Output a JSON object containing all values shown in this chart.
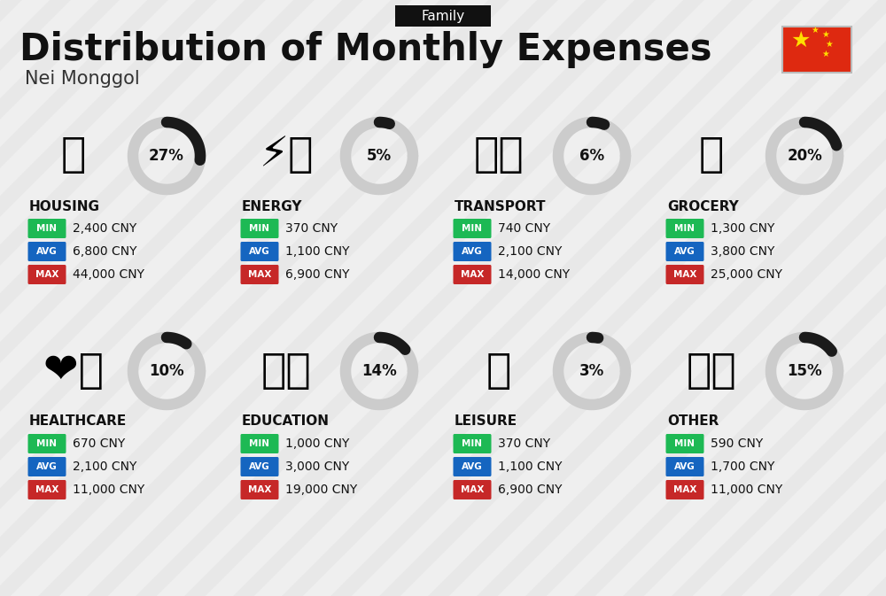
{
  "title": "Distribution of Monthly Expenses",
  "subtitle": "Nei Monggol",
  "header_label": "Family",
  "bg_color": "#efefef",
  "categories": [
    {
      "name": "HOUSING",
      "pct": 27,
      "icon": "🏢",
      "min_val": "2,400 CNY",
      "avg_val": "6,800 CNY",
      "max_val": "44,000 CNY",
      "col": 0,
      "row": 0
    },
    {
      "name": "ENERGY",
      "pct": 5,
      "icon": "⚡🏠",
      "min_val": "370 CNY",
      "avg_val": "1,100 CNY",
      "max_val": "6,900 CNY",
      "col": 1,
      "row": 0
    },
    {
      "name": "TRANSPORT",
      "pct": 6,
      "icon": "🚌🚗",
      "min_val": "740 CNY",
      "avg_val": "2,100 CNY",
      "max_val": "14,000 CNY",
      "col": 2,
      "row": 0
    },
    {
      "name": "GROCERY",
      "pct": 20,
      "icon": "🛒",
      "min_val": "1,300 CNY",
      "avg_val": "3,800 CNY",
      "max_val": "25,000 CNY",
      "col": 3,
      "row": 0
    },
    {
      "name": "HEALTHCARE",
      "pct": 10,
      "icon": "❤️🩺",
      "min_val": "670 CNY",
      "avg_val": "2,100 CNY",
      "max_val": "11,000 CNY",
      "col": 0,
      "row": 1
    },
    {
      "name": "EDUCATION",
      "pct": 14,
      "icon": "🎓📚",
      "min_val": "1,000 CNY",
      "avg_val": "3,000 CNY",
      "max_val": "19,000 CNY",
      "col": 1,
      "row": 1
    },
    {
      "name": "LEISURE",
      "pct": 3,
      "icon": "🛍️",
      "min_val": "370 CNY",
      "avg_val": "1,100 CNY",
      "max_val": "6,900 CNY",
      "col": 2,
      "row": 1
    },
    {
      "name": "OTHER",
      "pct": 15,
      "icon": "💰👜",
      "min_val": "590 CNY",
      "avg_val": "1,700 CNY",
      "max_val": "11,000 CNY",
      "col": 3,
      "row": 1
    }
  ],
  "min_color": "#1db954",
  "avg_color": "#1565c0",
  "max_color": "#c62828",
  "title_color": "#111111",
  "arc_dark": "#1a1a1a",
  "arc_light": "#cccccc",
  "stripe_color": "#e2e2e2",
  "flag_color": "#de2910",
  "flag_star_color": "#ffde00"
}
